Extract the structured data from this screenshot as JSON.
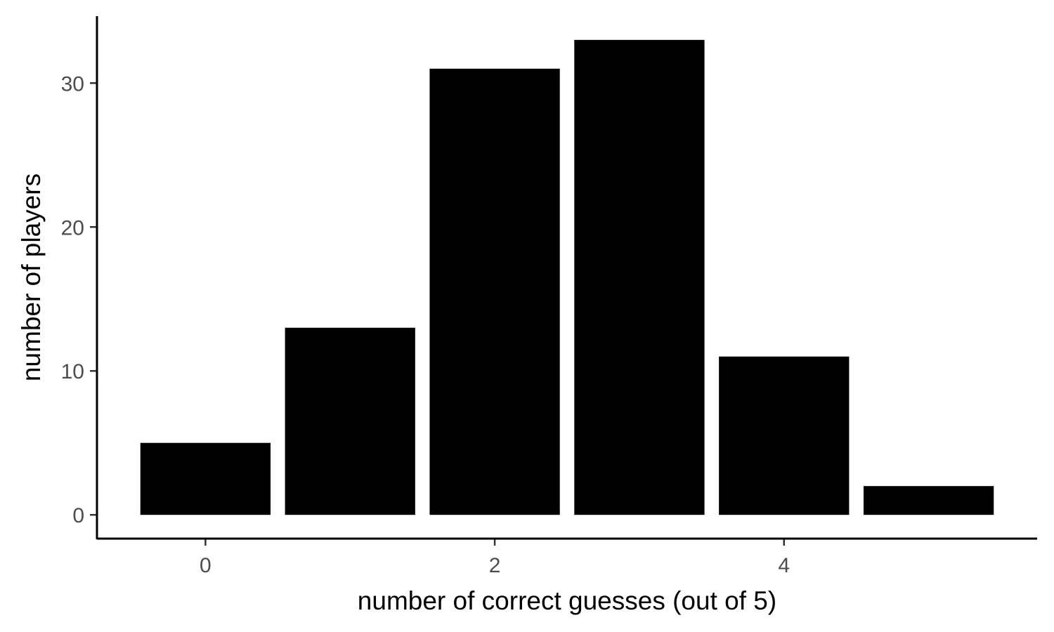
{
  "chart_data": {
    "type": "bar",
    "x": [
      0,
      1,
      2,
      3,
      4,
      5
    ],
    "values": [
      5,
      13,
      31,
      33,
      11,
      2
    ],
    "xlabel": "number of correct guesses (out of 5)",
    "ylabel": "number of players",
    "x_ticks": [
      0,
      2,
      4
    ],
    "y_ticks": [
      0,
      10,
      20,
      30
    ],
    "xlim": [
      -0.75,
      5.75
    ],
    "ylim": [
      -1.65,
      34.65
    ],
    "grid": false,
    "bar_color": "#000000"
  }
}
